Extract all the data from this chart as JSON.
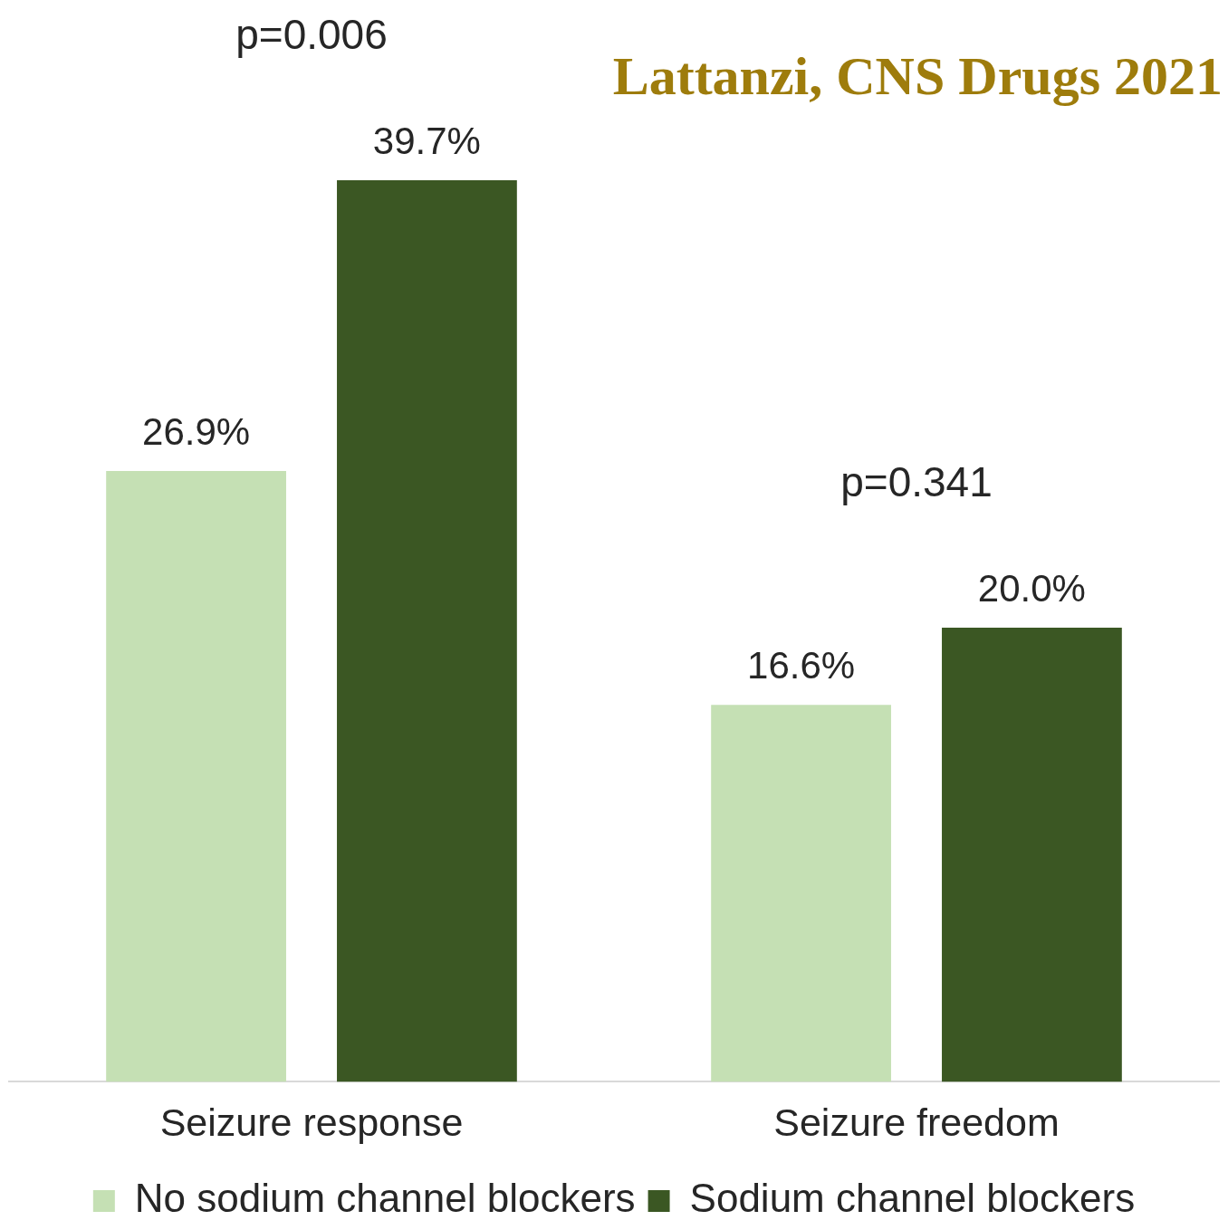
{
  "chart_data": {
    "type": "bar",
    "categories": [
      "Seizure response",
      "Seizure freedom"
    ],
    "series": [
      {
        "name": "No sodium channel blockers",
        "color": "#c5e0b4",
        "values": [
          26.9,
          16.6
        ],
        "value_labels": [
          "26.9%",
          "16.6%"
        ]
      },
      {
        "name": "Sodium channel blockers",
        "color": "#3b5723",
        "values": [
          39.7,
          20.0
        ],
        "value_labels": [
          "39.7%",
          "20.0%"
        ]
      }
    ],
    "annotations": [
      "p=0.006",
      "p=0.341",
      "Lattanzi, CNS Drugs 2021"
    ],
    "legend": "bottom"
  }
}
